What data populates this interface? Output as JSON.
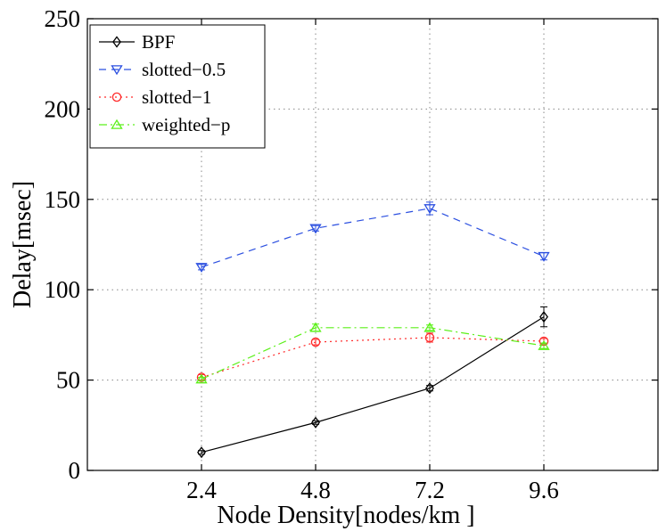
{
  "chart_data": {
    "type": "line",
    "title": "",
    "xlabel": "Node Density[nodes/km  ]",
    "ylabel": "Delay[msec]",
    "x": [
      2.4,
      4.8,
      7.2,
      9.6
    ],
    "xlim": [
      0,
      12
    ],
    "ylim": [
      0,
      250
    ],
    "xticks": [
      2.4,
      4.8,
      7.2,
      9.6
    ],
    "xtick_labels": [
      "2.4",
      "4.8",
      "7.2",
      "9.6"
    ],
    "yticks": [
      0,
      50,
      100,
      150,
      200,
      250
    ],
    "ytick_labels": [
      "0",
      "50",
      "100",
      "150",
      "200",
      "250"
    ],
    "grid": true,
    "legend_position": "top-left",
    "series": [
      {
        "name": "BPF",
        "color": "#000000",
        "line_style": "solid",
        "marker": "diamond",
        "values": [
          10,
          26.5,
          45.5,
          85
        ],
        "error": [
          1,
          1,
          1.5,
          5.5
        ]
      },
      {
        "name": "slotted−0.5",
        "color": "#2b4fe0",
        "line_style": "dashed",
        "marker": "triangle-down",
        "values": [
          112.5,
          134,
          145,
          118.5
        ],
        "error": [
          1.5,
          1.5,
          3.5,
          2
        ]
      },
      {
        "name": "slotted−1",
        "color": "#ff2a2a",
        "line_style": "dotted",
        "marker": "circle",
        "values": [
          51.5,
          71,
          73.5,
          71.5
        ],
        "error": [
          1.5,
          1.5,
          2.5,
          1.5
        ]
      },
      {
        "name": "weighted−p",
        "color": "#5cf01a",
        "line_style": "dash-dot",
        "marker": "triangle-up",
        "values": [
          50.5,
          79,
          79,
          69
        ],
        "error": [
          1,
          2,
          1.5,
          1.5
        ]
      }
    ]
  }
}
